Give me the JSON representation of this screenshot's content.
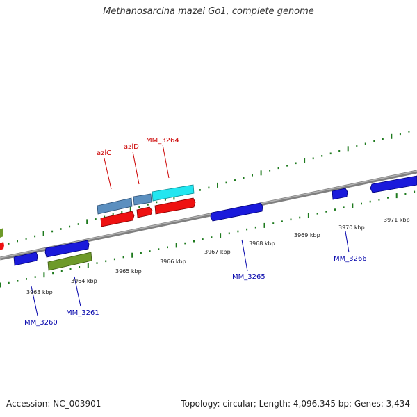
{
  "title": "Methanosarcina mazei Go1, complete genome",
  "footer": {
    "accession": "Accession: NC_003901",
    "topology": "Topology: circular; Length: 4,096,345 bp; Genes: 3,434"
  },
  "colors": {
    "backbone": "#8a8a8a",
    "tick": "#1e7a1e",
    "forward_label": "#cc0000",
    "reverse_label": "#0000aa",
    "blue_gene": "#1a1adb",
    "red_gene": "#ee1111",
    "steel_gene": "#5b8fbf",
    "cyan_gene": "#22e6f0",
    "olive_gene": "#6e9a2a"
  },
  "kbp_labels": [
    "3963 kbp",
    "3964 kbp",
    "3965 kbp",
    "3966 kbp",
    "3967 kbp",
    "3968 kbp",
    "3969 kbp",
    "3970 kbp",
    "3971 kbp"
  ],
  "gene_labels": {
    "forward": [
      "azlC",
      "azlD",
      "MM_3264"
    ],
    "reverse": [
      "MM_3260",
      "MM_3261",
      "MM_3265",
      "MM_3266"
    ]
  }
}
